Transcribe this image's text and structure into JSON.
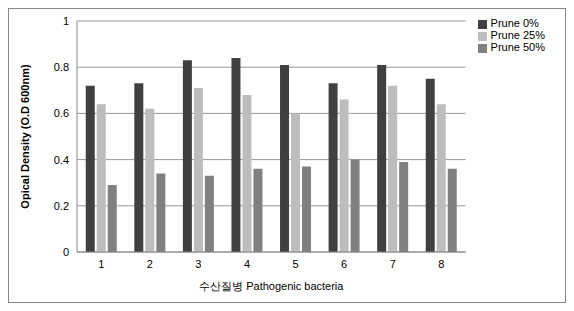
{
  "chart_data": {
    "type": "bar",
    "x_label": "수산질병 Pathogenic bacteria",
    "y_label": "Opical Density (O.D 600nm)",
    "categories": [
      "1",
      "2",
      "3",
      "4",
      "5",
      "6",
      "7",
      "8"
    ],
    "series": [
      {
        "name": "Prune 0%",
        "color": "#404040",
        "values": [
          0.72,
          0.73,
          0.83,
          0.84,
          0.81,
          0.73,
          0.81,
          0.75
        ]
      },
      {
        "name": "Prune 25%",
        "color": "#bdbdbd",
        "values": [
          0.64,
          0.62,
          0.71,
          0.68,
          0.6,
          0.66,
          0.72,
          0.64
        ]
      },
      {
        "name": "Prune 50%",
        "color": "#808080",
        "values": [
          0.29,
          0.34,
          0.33,
          0.36,
          0.37,
          0.4,
          0.39,
          0.36
        ]
      }
    ],
    "ylim": [
      0,
      1
    ],
    "yticks": [
      0,
      0.2,
      0.4,
      0.6,
      0.8,
      1
    ],
    "grid": true,
    "legend": "right"
  }
}
